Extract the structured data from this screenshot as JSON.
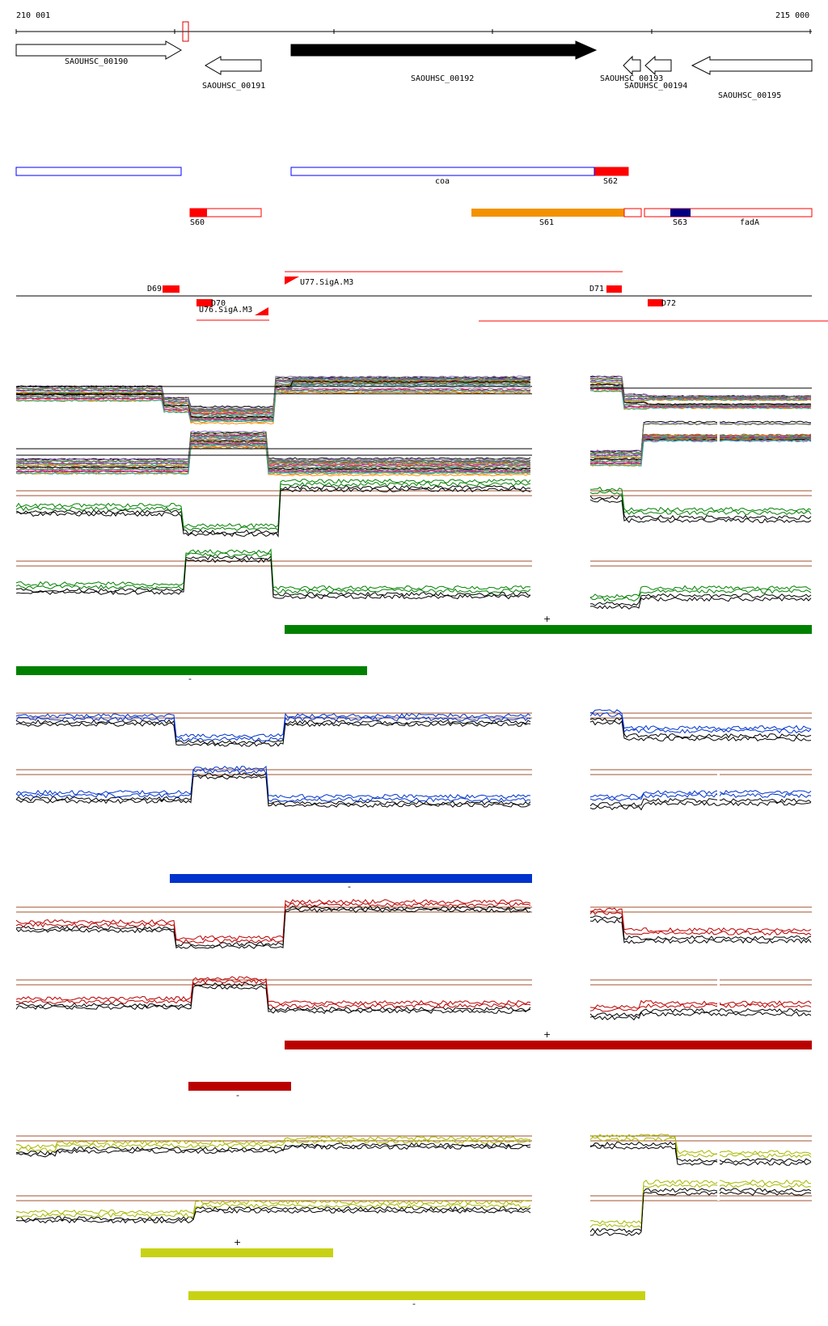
{
  "ruler": {
    "start": "210 001",
    "end": "215 000"
  },
  "genes": [
    {
      "name": "SAOUHSC_00190",
      "strand": "+",
      "highlight": false
    },
    {
      "name": "SAOUHSC_00191",
      "strand": "-",
      "highlight": false
    },
    {
      "name": "SAOUHSC_00192",
      "strand": "+",
      "highlight": true
    },
    {
      "name": "SAOUHSC_00193",
      "strand": "-",
      "highlight": false
    },
    {
      "name": "SAOUHSC_00194",
      "strand": "-",
      "highlight": false
    },
    {
      "name": "SAOUHSC_00195",
      "strand": "-",
      "highlight": false
    }
  ],
  "segments": {
    "coa": "coa",
    "s62": "S62",
    "s60": "S60",
    "s61": "S61",
    "s63": "S63",
    "fadA": "fadA"
  },
  "features": {
    "d69": "D69",
    "d70": "D70",
    "d71": "D71",
    "d72": "D72",
    "u76": "U76.SigA.M3",
    "u77": "U77.SigA.M3"
  },
  "condition_bars": {
    "green_plus": "+",
    "green_minus": "-",
    "blue_minus": "-",
    "red_plus": "+",
    "red_minus": "-",
    "yellow_plus": "+",
    "yellow_minus": "-"
  },
  "colors": {
    "green": "#008000",
    "blue": "#0033cc",
    "red": "#bb0000",
    "yellow": "#c8d214",
    "orange": "#f39200",
    "navy": "#000080",
    "segment_red": "#ff0000",
    "gene_blue": "#0000ff"
  }
}
